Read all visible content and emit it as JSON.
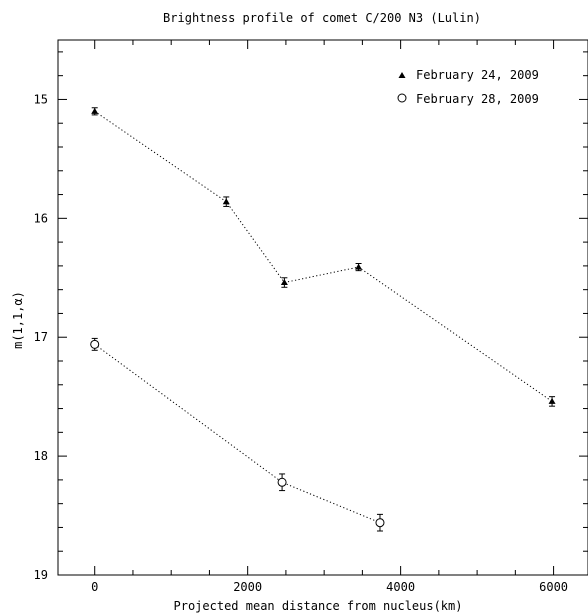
{
  "chart_data": {
    "type": "scatter",
    "title": "Brightness profile of comet C/200 N3 (Lulin)",
    "xlabel": "Projected mean distance from nucleus(km)",
    "ylabel": "m(1,1,α)",
    "xlim": [
      -480,
      6450
    ],
    "ylim": [
      19,
      14.5
    ],
    "y_inverted": true,
    "grid": false,
    "legend_position": "top-right",
    "x_ticks": [
      0,
      2000,
      4000,
      6000
    ],
    "y_ticks": [
      15,
      16,
      17,
      18,
      19
    ],
    "series": [
      {
        "name": "February 24, 2009",
        "marker": "filled-triangle",
        "line": "dotted",
        "points": [
          {
            "x": 0,
            "y": 15.1,
            "err": 0.03
          },
          {
            "x": 1720,
            "y": 15.86,
            "err": 0.04
          },
          {
            "x": 2480,
            "y": 16.54,
            "err": 0.04
          },
          {
            "x": 3450,
            "y": 16.41,
            "err": 0.03
          },
          {
            "x": 5980,
            "y": 17.54,
            "err": 0.04
          }
        ]
      },
      {
        "name": "February 28, 2009",
        "marker": "open-circle",
        "line": "dotted",
        "points": [
          {
            "x": 0,
            "y": 17.06,
            "err": 0.05
          },
          {
            "x": 2450,
            "y": 18.22,
            "err": 0.07
          },
          {
            "x": 3730,
            "y": 18.56,
            "err": 0.07
          }
        ]
      }
    ]
  }
}
